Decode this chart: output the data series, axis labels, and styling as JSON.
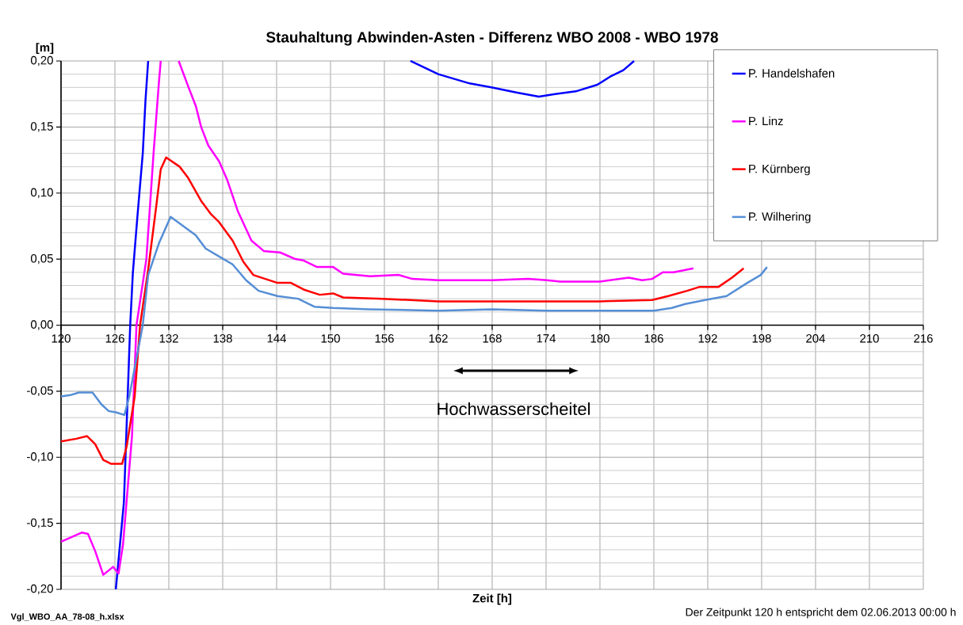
{
  "chart_data": {
    "type": "line",
    "title": "Stauhaltung Abwinden-Asten - Differenz WBO 2008 - WBO 1978",
    "xlabel": "Zeit [h]",
    "ylabel": "[m]",
    "xlim": [
      120,
      216
    ],
    "xticks": [
      120,
      126,
      132,
      138,
      144,
      150,
      156,
      162,
      168,
      174,
      180,
      186,
      192,
      198,
      204,
      210,
      216
    ],
    "ylim": [
      -0.2,
      0.2
    ],
    "yticks": [
      {
        "value": -0.2,
        "label": "-0,20"
      },
      {
        "value": -0.15,
        "label": "-0,15"
      },
      {
        "value": -0.1,
        "label": "-0,10"
      },
      {
        "value": -0.05,
        "label": "-0,05"
      },
      {
        "value": 0,
        "label": "0,00"
      },
      {
        "value": 0.05,
        "label": "0,05"
      },
      {
        "value": 0.1,
        "label": "0,10"
      },
      {
        "value": 0.15,
        "label": "0,15"
      },
      {
        "value": 0.2,
        "label": "0,20"
      }
    ],
    "grid": true,
    "legend": "top right",
    "marker": "none",
    "line_style": "solid",
    "series": [
      {
        "name": "P. Handelshafen",
        "color": "#0000ff",
        "x": [
          126.1,
          127.0,
          127.7,
          128.0,
          128.5,
          129.1,
          129.4,
          129.7,
          144,
          158.9,
          162,
          165.5,
          167.9,
          170.8,
          173.2,
          175,
          177.3,
          179.7,
          181.1,
          182.6,
          183.8
        ],
        "values": [
          -0.2,
          -0.134,
          0,
          0.04,
          0.082,
          0.13,
          0.17,
          0.2,
          null,
          0.2,
          0.19,
          0.183,
          0.18,
          0.176,
          0.173,
          0.175,
          0.177,
          0.182,
          0.188,
          0.193,
          0.2
        ]
      },
      {
        "name": "P. Linz",
        "color": "#ff00ff",
        "x": [
          120,
          122.3,
          123,
          123.8,
          124.7,
          125.8,
          126.4,
          126.9,
          127.9,
          128.4,
          129.5,
          130.3,
          130.9,
          131.1,
          132,
          133.1,
          134.2,
          135,
          135.6,
          136.4,
          137.6,
          138.5,
          139.7,
          141.2,
          142.6,
          144.4,
          146.1,
          147,
          148.5,
          150.3,
          151.4,
          154.4,
          157.6,
          159.1,
          162,
          168,
          172,
          174.1,
          175.6,
          180,
          183.2,
          184.7,
          185.8,
          187,
          188.2,
          190.4
        ],
        "values": [
          -0.164,
          -0.157,
          -0.158,
          -0.171,
          -0.189,
          -0.183,
          -0.188,
          -0.166,
          -0.084,
          0,
          0.05,
          0.13,
          0.184,
          0.2,
          null,
          0.2,
          0.18,
          0.166,
          0.15,
          0.136,
          0.124,
          0.11,
          0.086,
          0.064,
          0.056,
          0.055,
          0.05,
          0.049,
          0.044,
          0.044,
          0.039,
          0.037,
          0.038,
          0.035,
          0.034,
          0.034,
          0.035,
          0.034,
          0.033,
          0.033,
          0.036,
          0.034,
          0.035,
          0.04,
          0.04,
          0.043
        ]
      },
      {
        "name": "P. Kürnberg",
        "color": "#ff0000",
        "x": [
          120,
          121.7,
          122.9,
          123.8,
          124.7,
          125.6,
          126.8,
          127.3,
          128.2,
          128.8,
          129.7,
          130.6,
          131.1,
          131.7,
          133.2,
          134.1,
          135.6,
          136.7,
          137.6,
          139.1,
          140.3,
          141.4,
          144.1,
          145.6,
          147,
          148.8,
          150.3,
          151.4,
          155.8,
          162,
          168,
          174,
          180,
          185.8,
          187.6,
          189.7,
          191.1,
          193.2,
          194.7,
          196
        ],
        "values": [
          -0.088,
          -0.086,
          -0.084,
          -0.09,
          -0.102,
          -0.105,
          -0.105,
          -0.092,
          -0.054,
          0,
          0.042,
          0.09,
          0.118,
          0.127,
          0.12,
          0.112,
          0.094,
          0.084,
          0.078,
          0.064,
          0.048,
          0.038,
          0.032,
          0.032,
          0.027,
          0.023,
          0.024,
          0.021,
          0.02,
          0.018,
          0.018,
          0.018,
          0.018,
          0.019,
          0.022,
          0.026,
          0.029,
          0.029,
          0.036,
          0.043
        ]
      },
      {
        "name": "P. Wilhering",
        "color": "#558ed5",
        "x": [
          120,
          121,
          122,
          123.5,
          124.5,
          125.3,
          126.1,
          127.06,
          127.6,
          129.1,
          129.7,
          130.9,
          132.2,
          133.8,
          135,
          136.1,
          138.1,
          139.1,
          140.6,
          142,
          144.1,
          146.4,
          148.2,
          150.3,
          154.3,
          162,
          168,
          174,
          180,
          186,
          188,
          189.5,
          191.7,
          194.1,
          196.4,
          197.9,
          198.6
        ],
        "values": [
          -0.054,
          -0.053,
          -0.051,
          -0.051,
          -0.06,
          -0.065,
          -0.066,
          -0.068,
          -0.054,
          0,
          0.038,
          0.062,
          0.082,
          0.074,
          0.068,
          0.058,
          0.05,
          0.046,
          0.034,
          0.026,
          0.022,
          0.02,
          0.014,
          0.013,
          0.012,
          0.011,
          0.012,
          0.011,
          0.011,
          0.011,
          0.013,
          0.016,
          0.019,
          0.022,
          0.032,
          0.038,
          0.044
        ]
      }
    ],
    "annotations": [
      "Hochwasserscheitel",
      "Vgl_WBO_AA_78-08_h.xlsx",
      "Der Zeitpunkt 120 h entspricht dem 02.06.2013 00:00 h"
    ]
  }
}
